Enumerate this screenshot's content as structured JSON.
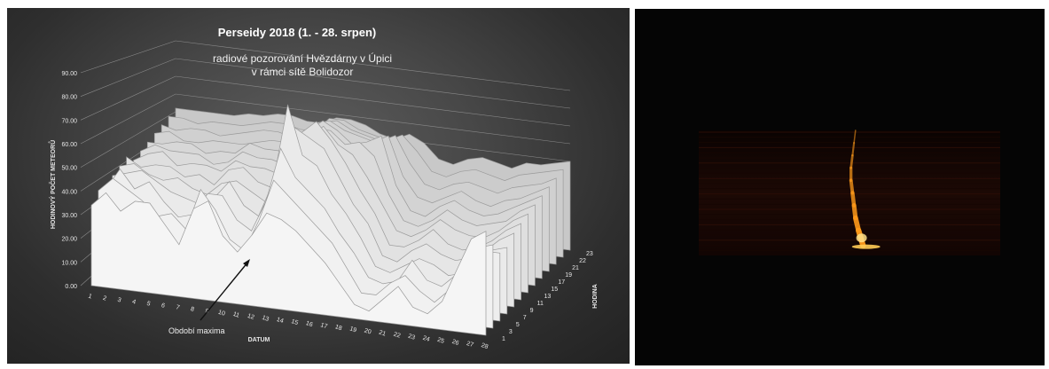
{
  "chart_data": {
    "type": "area",
    "subtype": "3d-surface",
    "title": "Perseidy 2018 (1. - 28. srpen)",
    "subtitle_lines": [
      "radiové pozorování Hvězdárny v Úpici",
      "v rámci sítě Bolidozor"
    ],
    "ylabel": "HODINOVÝ POČET METEORŮ",
    "xlabel": "DATUM",
    "zlabel": "HODINA",
    "ylim": [
      0,
      90
    ],
    "y_ticks": [
      "0.00",
      "10.00",
      "20.00",
      "30.00",
      "40.00",
      "50.00",
      "60.00",
      "70.00",
      "80.00",
      "90.00"
    ],
    "x_categories": [
      "1",
      "2",
      "3",
      "4",
      "5",
      "6",
      "7",
      "8",
      "9",
      "10",
      "11",
      "12",
      "13",
      "14",
      "15",
      "16",
      "17",
      "18",
      "19",
      "20",
      "21",
      "22",
      "23",
      "24",
      "25",
      "26",
      "27",
      "28"
    ],
    "z_categories": [
      "1",
      "3",
      "5",
      "7",
      "9",
      "11",
      "13",
      "15",
      "17",
      "19",
      "21",
      "22",
      "23"
    ],
    "series": [
      {
        "name": "1",
        "values": [
          34,
          40,
          33,
          38,
          38,
          30,
          22,
          38,
          42,
          28,
          22,
          30,
          40,
          38,
          34,
          28,
          22,
          14,
          6,
          4,
          10,
          16,
          8,
          6,
          12,
          26,
          40,
          44
        ]
      },
      {
        "name": "3",
        "values": [
          38,
          44,
          40,
          36,
          30,
          32,
          26,
          44,
          36,
          24,
          20,
          34,
          52,
          46,
          40,
          34,
          28,
          18,
          8,
          8,
          14,
          18,
          12,
          8,
          14,
          22,
          34,
          36
        ]
      },
      {
        "name": "5",
        "values": [
          36,
          46,
          38,
          42,
          34,
          28,
          30,
          40,
          40,
          30,
          26,
          40,
          64,
          52,
          46,
          40,
          30,
          22,
          12,
          10,
          12,
          22,
          14,
          12,
          18,
          24,
          30,
          30
        ]
      },
      {
        "name": "7",
        "values": [
          40,
          42,
          44,
          40,
          36,
          34,
          32,
          36,
          44,
          34,
          30,
          46,
          82,
          60,
          56,
          44,
          36,
          26,
          14,
          12,
          16,
          20,
          18,
          14,
          16,
          22,
          28,
          30
        ]
      },
      {
        "name": "9",
        "values": [
          42,
          44,
          40,
          38,
          40,
          36,
          34,
          40,
          42,
          38,
          34,
          50,
          70,
          66,
          62,
          50,
          38,
          30,
          16,
          14,
          20,
          24,
          20,
          18,
          20,
          24,
          30,
          34
        ]
      },
      {
        "name": "11",
        "values": [
          44,
          40,
          42,
          42,
          38,
          40,
          36,
          44,
          46,
          40,
          38,
          52,
          66,
          72,
          64,
          54,
          42,
          32,
          18,
          18,
          22,
          28,
          22,
          20,
          22,
          26,
          32,
          36
        ]
      },
      {
        "name": "13",
        "values": [
          40,
          44,
          46,
          40,
          42,
          42,
          40,
          46,
          44,
          44,
          42,
          56,
          62,
          68,
          60,
          56,
          46,
          34,
          22,
          20,
          24,
          30,
          26,
          24,
          24,
          28,
          34,
          38
        ]
      },
      {
        "name": "15",
        "values": [
          42,
          46,
          44,
          44,
          44,
          40,
          42,
          48,
          46,
          46,
          44,
          58,
          64,
          64,
          58,
          60,
          54,
          36,
          24,
          22,
          26,
          32,
          28,
          26,
          28,
          30,
          36,
          40
        ]
      },
      {
        "name": "17",
        "values": [
          44,
          44,
          46,
          46,
          42,
          44,
          44,
          50,
          48,
          48,
          46,
          60,
          66,
          62,
          56,
          58,
          62,
          38,
          26,
          24,
          30,
          34,
          30,
          28,
          30,
          34,
          38,
          42
        ]
      },
      {
        "name": "19",
        "values": [
          46,
          48,
          44,
          44,
          46,
          46,
          46,
          48,
          50,
          50,
          48,
          62,
          64,
          60,
          58,
          56,
          60,
          40,
          30,
          28,
          32,
          36,
          32,
          30,
          34,
          36,
          40,
          44
        ]
      },
      {
        "name": "21",
        "values": [
          48,
          46,
          48,
          48,
          46,
          48,
          50,
          52,
          52,
          50,
          50,
          60,
          62,
          58,
          56,
          54,
          58,
          44,
          34,
          32,
          36,
          38,
          36,
          34,
          38,
          40,
          42,
          46
        ]
      },
      {
        "name": "22",
        "values": [
          50,
          50,
          48,
          50,
          50,
          50,
          52,
          54,
          54,
          52,
          52,
          60,
          60,
          56,
          54,
          52,
          56,
          48,
          38,
          36,
          40,
          42,
          40,
          38,
          42,
          44,
          46,
          48
        ]
      },
      {
        "name": "23",
        "values": [
          52,
          52,
          52,
          52,
          52,
          54,
          54,
          56,
          56,
          54,
          54,
          58,
          58,
          56,
          52,
          50,
          54,
          50,
          42,
          40,
          44,
          46,
          44,
          42,
          46,
          46,
          48,
          50
        ]
      }
    ],
    "annotation": "Období maxima",
    "grid": true
  },
  "colors": {
    "chart_bg": "#3c3c3c",
    "surface": "#ededed",
    "surface_edge": "#9a9a9a",
    "grid": "#8a8a8a",
    "text": "#ffffff",
    "spectro_bg": "#050505",
    "spectro_band": "#1a0804",
    "meteor_trail": "#ff9a1a"
  },
  "spectrogram": {
    "trail_x_fraction": [
      0.52,
      0.515,
      0.51,
      0.505,
      0.505,
      0.51,
      0.515,
      0.52,
      0.53,
      0.545
    ],
    "trail_y_fraction": [
      0.0,
      0.1,
      0.2,
      0.3,
      0.4,
      0.5,
      0.6,
      0.7,
      0.8,
      0.92
    ]
  }
}
